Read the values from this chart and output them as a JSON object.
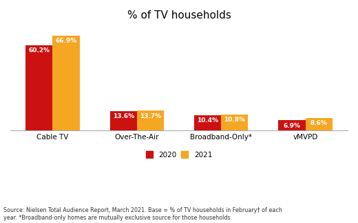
{
  "title": "% of TV households",
  "categories": [
    "Cable TV",
    "Over-The-Air",
    "Broadband-Only*",
    "vMVPD"
  ],
  "values_2020": [
    60.2,
    13.6,
    10.4,
    6.9
  ],
  "values_2021": [
    66.9,
    13.7,
    10.8,
    8.6
  ],
  "color_2020": "#cc1111",
  "color_2021": "#f5a623",
  "legend_labels": [
    "2020",
    "2021"
  ],
  "ylim": [
    0,
    75
  ],
  "bar_width": 0.32,
  "source_text": "Source: Nielsen Total Audience Report, March 2021. Base = % of TV households in February† of each\nyear. *Broadband-only homes are mutually exclusive source for those households.",
  "label_fontsize": 6.5,
  "title_fontsize": 11,
  "tick_fontsize": 7.5,
  "legend_fontsize": 7.5,
  "source_fontsize": 5.8,
  "background_color": "#ffffff",
  "grid_color": "#dddddd"
}
